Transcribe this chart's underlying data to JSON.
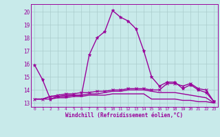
{
  "title": "",
  "xlabel": "Windchill (Refroidissement éolien,°C)",
  "ylabel": "",
  "bg_color": "#c8eaea",
  "line_color": "#990099",
  "grid_color": "#aacccc",
  "xlim": [
    -0.5,
    23.5
  ],
  "ylim": [
    12.7,
    20.6
  ],
  "yticks": [
    13,
    14,
    15,
    16,
    17,
    18,
    19,
    20
  ],
  "xticks": [
    0,
    1,
    2,
    3,
    4,
    5,
    6,
    7,
    8,
    9,
    10,
    11,
    12,
    13,
    14,
    15,
    16,
    17,
    18,
    19,
    20,
    21,
    22,
    23
  ],
  "series": [
    [
      15.9,
      14.8,
      13.3,
      13.5,
      13.5,
      13.6,
      13.6,
      16.7,
      18.0,
      18.5,
      20.1,
      19.6,
      19.3,
      18.7,
      17.0,
      15.0,
      14.3,
      14.6,
      14.6,
      14.1,
      14.4,
      14.0,
      13.8,
      13.1
    ],
    [
      13.3,
      13.3,
      13.3,
      13.4,
      13.4,
      13.5,
      13.5,
      13.6,
      13.6,
      13.6,
      13.7,
      13.7,
      13.7,
      13.7,
      13.7,
      13.3,
      13.3,
      13.3,
      13.3,
      13.2,
      13.2,
      13.1,
      13.1,
      13.0
    ],
    [
      13.3,
      13.3,
      13.5,
      13.5,
      13.6,
      13.6,
      13.6,
      13.7,
      13.7,
      13.8,
      13.9,
      13.9,
      14.0,
      14.0,
      14.0,
      13.9,
      13.8,
      13.8,
      13.8,
      13.7,
      13.6,
      13.5,
      13.4,
      13.0
    ],
    [
      13.3,
      13.3,
      13.5,
      13.6,
      13.7,
      13.7,
      13.8,
      13.8,
      13.9,
      13.9,
      14.0,
      14.0,
      14.1,
      14.1,
      14.1,
      14.0,
      14.0,
      14.5,
      14.5,
      14.3,
      14.5,
      14.1,
      14.0,
      13.1
    ]
  ],
  "marker_series": 0,
  "marker_x_series": 3
}
